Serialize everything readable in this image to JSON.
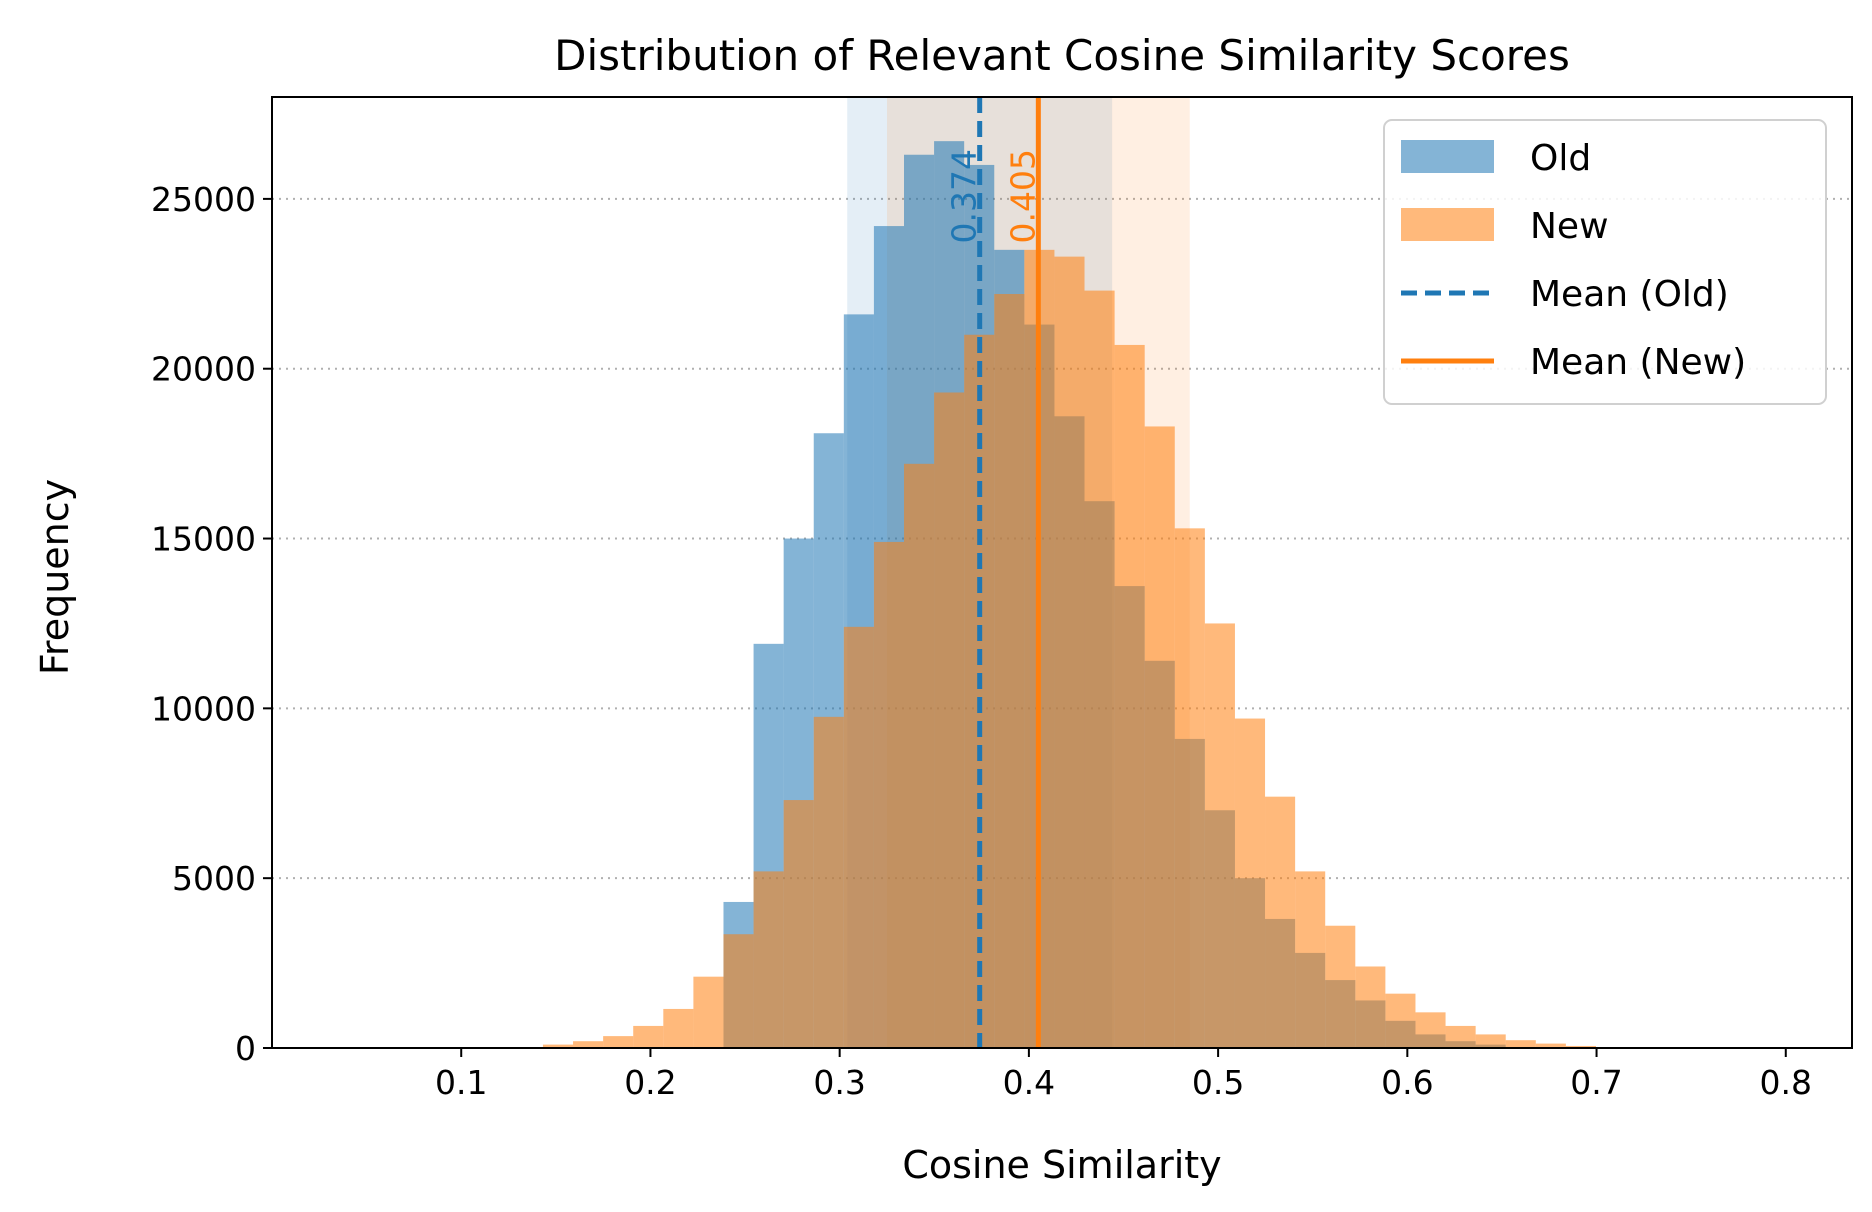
{
  "chart_data": {
    "type": "bar",
    "title": "Distribution of Relevant Cosine Similarity Scores",
    "xlabel": "Cosine Similarity",
    "ylabel": "Frequency",
    "xlim": [
      0.0,
      0.835
    ],
    "ylim": [
      0,
      28000
    ],
    "xticks": [
      0.1,
      0.2,
      0.3,
      0.4,
      0.5,
      0.6,
      0.7,
      0.8
    ],
    "xtick_labels": [
      "0.1",
      "0.2",
      "0.3",
      "0.4",
      "0.5",
      "0.6",
      "0.7",
      "0.8"
    ],
    "yticks": [
      0,
      5000,
      10000,
      15000,
      20000,
      25000
    ],
    "ytick_labels": [
      "0",
      "5000",
      "10000",
      "15000",
      "20000",
      "25000"
    ],
    "grid": "y-dotted",
    "series": [
      {
        "name": "Old",
        "color": "#1f77b4",
        "bins": [
          {
            "x0": 0.2386,
            "x1": 0.2545,
            "value": 4300
          },
          {
            "x0": 0.2545,
            "x1": 0.2704,
            "value": 11900
          },
          {
            "x0": 0.2704,
            "x1": 0.2863,
            "value": 15000
          },
          {
            "x0": 0.2863,
            "x1": 0.3022,
            "value": 18100
          },
          {
            "x0": 0.3022,
            "x1": 0.3181,
            "value": 21600
          },
          {
            "x0": 0.3181,
            "x1": 0.334,
            "value": 24200
          },
          {
            "x0": 0.334,
            "x1": 0.3499,
            "value": 26300
          },
          {
            "x0": 0.3499,
            "x1": 0.3658,
            "value": 26700
          },
          {
            "x0": 0.3658,
            "x1": 0.3817,
            "value": 26000
          },
          {
            "x0": 0.3817,
            "x1": 0.3976,
            "value": 23500
          },
          {
            "x0": 0.3976,
            "x1": 0.4135,
            "value": 21300
          },
          {
            "x0": 0.4135,
            "x1": 0.4294,
            "value": 18600
          },
          {
            "x0": 0.4294,
            "x1": 0.4453,
            "value": 16100
          },
          {
            "x0": 0.4453,
            "x1": 0.4612,
            "value": 13600
          },
          {
            "x0": 0.4612,
            "x1": 0.4771,
            "value": 11400
          },
          {
            "x0": 0.4771,
            "x1": 0.493,
            "value": 9100
          },
          {
            "x0": 0.493,
            "x1": 0.5089,
            "value": 7000
          },
          {
            "x0": 0.5089,
            "x1": 0.5248,
            "value": 5000
          },
          {
            "x0": 0.5248,
            "x1": 0.5407,
            "value": 3800
          },
          {
            "x0": 0.5407,
            "x1": 0.5566,
            "value": 2800
          },
          {
            "x0": 0.5566,
            "x1": 0.5725,
            "value": 2000
          },
          {
            "x0": 0.5725,
            "x1": 0.5884,
            "value": 1400
          },
          {
            "x0": 0.5884,
            "x1": 0.6043,
            "value": 800
          },
          {
            "x0": 0.6043,
            "x1": 0.6202,
            "value": 400
          },
          {
            "x0": 0.6202,
            "x1": 0.6361,
            "value": 200
          },
          {
            "x0": 0.6361,
            "x1": 0.652,
            "value": 100
          }
        ]
      },
      {
        "name": "New",
        "color": "#ff7f0e",
        "bins": [
          {
            "x0": 0.1432,
            "x1": 0.1591,
            "value": 100
          },
          {
            "x0": 0.1591,
            "x1": 0.175,
            "value": 200
          },
          {
            "x0": 0.175,
            "x1": 0.1909,
            "value": 350
          },
          {
            "x0": 0.1909,
            "x1": 0.2068,
            "value": 650
          },
          {
            "x0": 0.2068,
            "x1": 0.2227,
            "value": 1150
          },
          {
            "x0": 0.2227,
            "x1": 0.2386,
            "value": 2100
          },
          {
            "x0": 0.2386,
            "x1": 0.2545,
            "value": 3350
          },
          {
            "x0": 0.2545,
            "x1": 0.2704,
            "value": 5200
          },
          {
            "x0": 0.2704,
            "x1": 0.2863,
            "value": 7300
          },
          {
            "x0": 0.2863,
            "x1": 0.3022,
            "value": 9750
          },
          {
            "x0": 0.3022,
            "x1": 0.3181,
            "value": 12400
          },
          {
            "x0": 0.3181,
            "x1": 0.334,
            "value": 14900
          },
          {
            "x0": 0.334,
            "x1": 0.3499,
            "value": 17200
          },
          {
            "x0": 0.3499,
            "x1": 0.3658,
            "value": 19300
          },
          {
            "x0": 0.3658,
            "x1": 0.3817,
            "value": 21000
          },
          {
            "x0": 0.3817,
            "x1": 0.3976,
            "value": 22200
          },
          {
            "x0": 0.3976,
            "x1": 0.4135,
            "value": 23500
          },
          {
            "x0": 0.4135,
            "x1": 0.4294,
            "value": 23300
          },
          {
            "x0": 0.4294,
            "x1": 0.4453,
            "value": 22300
          },
          {
            "x0": 0.4453,
            "x1": 0.4612,
            "value": 20700
          },
          {
            "x0": 0.4612,
            "x1": 0.4771,
            "value": 18300
          },
          {
            "x0": 0.4771,
            "x1": 0.493,
            "value": 15300
          },
          {
            "x0": 0.493,
            "x1": 0.5089,
            "value": 12500
          },
          {
            "x0": 0.5089,
            "x1": 0.5248,
            "value": 9700
          },
          {
            "x0": 0.5248,
            "x1": 0.5407,
            "value": 7400
          },
          {
            "x0": 0.5407,
            "x1": 0.5566,
            "value": 5200
          },
          {
            "x0": 0.5566,
            "x1": 0.5725,
            "value": 3600
          },
          {
            "x0": 0.5725,
            "x1": 0.5884,
            "value": 2400
          },
          {
            "x0": 0.5884,
            "x1": 0.6043,
            "value": 1600
          },
          {
            "x0": 0.6043,
            "x1": 0.6202,
            "value": 1050
          },
          {
            "x0": 0.6202,
            "x1": 0.6361,
            "value": 650
          },
          {
            "x0": 0.6361,
            "x1": 0.652,
            "value": 400
          },
          {
            "x0": 0.652,
            "x1": 0.6679,
            "value": 230
          },
          {
            "x0": 0.6679,
            "x1": 0.6838,
            "value": 130
          },
          {
            "x0": 0.6838,
            "x1": 0.6997,
            "value": 60
          }
        ]
      }
    ],
    "mean_lines": [
      {
        "name": "Mean (Old)",
        "x": 0.374,
        "label": "0.374",
        "color": "#1f77b4",
        "style": "dashed"
      },
      {
        "name": "Mean (New)",
        "x": 0.405,
        "label": "0.405",
        "color": "#ff7f0e",
        "style": "solid"
      }
    ],
    "std_bands": [
      {
        "series": "Old",
        "x0": 0.304,
        "x1": 0.444,
        "color": "#1f77b4"
      },
      {
        "series": "New",
        "x0": 0.325,
        "x1": 0.485,
        "color": "#ff7f0e"
      }
    ],
    "legend": {
      "position": "top-right",
      "entries": [
        {
          "label": "Old",
          "kind": "patch",
          "color": "#1f77b4"
        },
        {
          "label": "New",
          "kind": "patch",
          "color": "#ff7f0e"
        },
        {
          "label": "Mean (Old)",
          "kind": "dashed-line",
          "color": "#1f77b4"
        },
        {
          "label": "Mean (New)",
          "kind": "solid-line",
          "color": "#ff7f0e"
        }
      ]
    }
  }
}
